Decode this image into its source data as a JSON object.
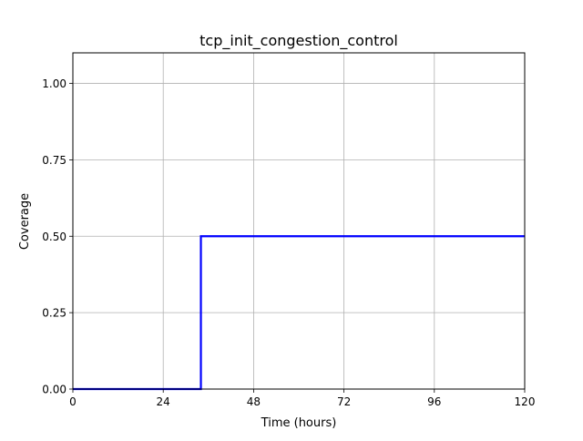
{
  "chart_data": {
    "type": "line",
    "title": "tcp_init_congestion_control",
    "xlabel": "Time (hours)",
    "ylabel": "Coverage",
    "xlim": [
      0,
      120
    ],
    "ylim": [
      0,
      1.1
    ],
    "xticks": [
      0,
      24,
      48,
      72,
      96,
      120
    ],
    "xtick_labels": [
      "0",
      "24",
      "48",
      "72",
      "96",
      "120"
    ],
    "yticks": [
      0,
      0.25,
      0.5,
      0.75,
      1.0
    ],
    "ytick_labels": [
      "0.00",
      "0.25",
      "0.50",
      "0.75",
      "1.00"
    ],
    "grid": true,
    "step": "post",
    "series": [
      {
        "color": "#0000ff",
        "x": [
          0,
          34,
          120
        ],
        "y": [
          0,
          0.5,
          0.5
        ]
      }
    ]
  }
}
